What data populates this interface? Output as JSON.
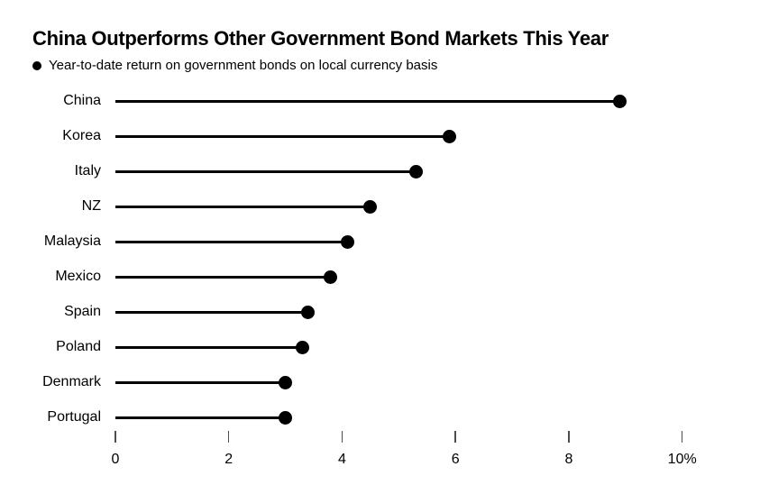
{
  "title": "China Outperforms Other Government Bond Markets This Year",
  "legend": {
    "marker": "filled-circle",
    "label": "Year-to-date return on government bonds on local currency basis"
  },
  "colors": {
    "foreground": "#000000",
    "background": "#ffffff",
    "tick": "#4d4d4d"
  },
  "chart_data": {
    "type": "bar",
    "variant": "lollipop-horizontal",
    "title": "China Outperforms Other Government Bond Markets This Year",
    "subtitle": "Year-to-date return on government bonds on local currency basis",
    "categories": [
      "China",
      "Korea",
      "Italy",
      "NZ",
      "Malaysia",
      "Mexico",
      "Spain",
      "Poland",
      "Denmark",
      "Portugal"
    ],
    "values": [
      8.9,
      5.9,
      5.3,
      4.5,
      4.1,
      3.8,
      3.4,
      3.3,
      3.0,
      3.0
    ],
    "xlabel": "",
    "ylabel": "",
    "xlim": [
      0,
      10.5
    ],
    "unit": "%",
    "grid": false,
    "legend_position": "top-left",
    "x_ticks": [
      {
        "value": 0,
        "label": "0"
      },
      {
        "value": 2,
        "label": "2"
      },
      {
        "value": 4,
        "label": "4"
      },
      {
        "value": 6,
        "label": "6"
      },
      {
        "value": 8,
        "label": "8"
      },
      {
        "value": 10,
        "label": "10%"
      }
    ]
  }
}
